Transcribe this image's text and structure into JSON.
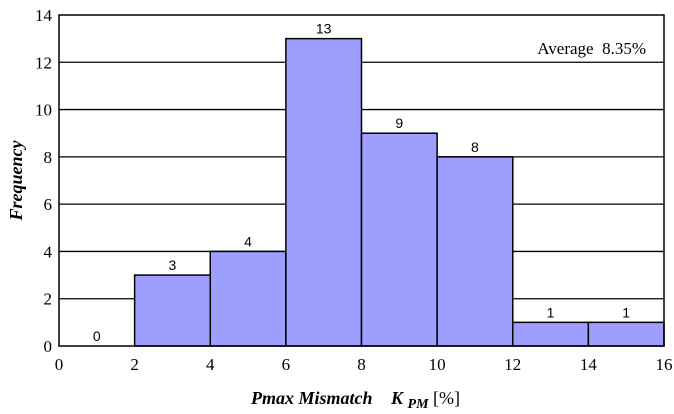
{
  "chart_data": {
    "type": "bar",
    "bins": [
      [
        0,
        2
      ],
      [
        2,
        4
      ],
      [
        4,
        6
      ],
      [
        6,
        8
      ],
      [
        8,
        10
      ],
      [
        10,
        12
      ],
      [
        12,
        14
      ],
      [
        14,
        16
      ]
    ],
    "values": [
      0,
      3,
      4,
      13,
      9,
      8,
      1,
      1
    ],
    "data_labels": [
      "0",
      "3",
      "4",
      "13",
      "9",
      "8",
      "1",
      "1"
    ],
    "xlim": [
      0,
      16
    ],
    "ylim": [
      0,
      14
    ],
    "xticks": [
      "0",
      "2",
      "4",
      "6",
      "8",
      "10",
      "12",
      "14",
      "16"
    ],
    "yticks": [
      "0",
      "2",
      "4",
      "6",
      "8",
      "10",
      "12",
      "14"
    ],
    "ylabel": "Frequency",
    "xlabel_main": "Pmax Mismatch",
    "xlabel_symbol": "K",
    "xlabel_subscript": "PM",
    "xlabel_unit": "[%]",
    "annotation": "Average  8.35%",
    "grid": "horizontal",
    "bar_color": "#9e9eff",
    "edge_color": "#000000"
  }
}
